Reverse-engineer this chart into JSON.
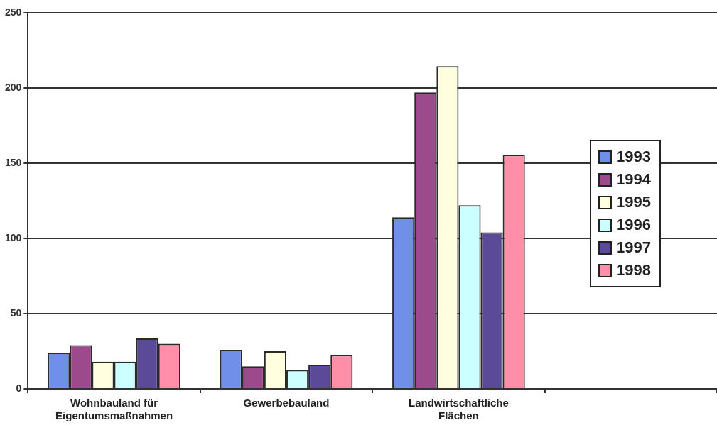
{
  "chart_data": {
    "type": "bar",
    "categories": [
      "Wohnbauland für Eigentumsmaßnahmen",
      "Gewerbebauland",
      "Landwirtschaftliche Flächen",
      null
    ],
    "series": [
      {
        "name": "1993",
        "color": "#6f8fe8",
        "values": [
          24,
          26,
          114,
          null
        ]
      },
      {
        "name": "1994",
        "color": "#9c4a8c",
        "values": [
          29,
          15,
          197,
          null
        ]
      },
      {
        "name": "1995",
        "color": "#ffffe0",
        "values": [
          18,
          25,
          214.5,
          null
        ]
      },
      {
        "name": "1996",
        "color": "#ccffff",
        "values": [
          18,
          12.5,
          122,
          null
        ]
      },
      {
        "name": "1997",
        "color": "#5a4a98",
        "values": [
          33.5,
          16,
          104,
          null
        ]
      },
      {
        "name": "1998",
        "color": "#ff8fa8",
        "values": [
          30,
          22.5,
          155.5,
          null
        ]
      }
    ],
    "ylim": [
      0,
      250
    ],
    "yticks": [
      0,
      50,
      100,
      150,
      200,
      250
    ],
    "grid": "y",
    "legend": "right"
  }
}
